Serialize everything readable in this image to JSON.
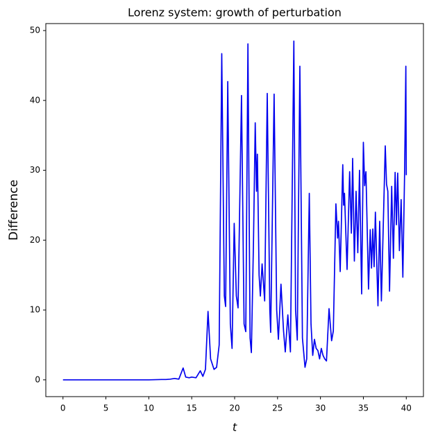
{
  "chart_data": {
    "type": "line",
    "title": "Lorenz system: growth of perturbation",
    "x_label": "t",
    "y_label": "Difference",
    "x": [
      0,
      5,
      10,
      11.5,
      12,
      12.5,
      13,
      13.5,
      14,
      14.3,
      14.7,
      15,
      15.5,
      16,
      16.3,
      16.6,
      16.9,
      17.2,
      17.6,
      17.9,
      18.2,
      18.5,
      18.8,
      18.95,
      19.2,
      19.5,
      19.7,
      19.95,
      20.2,
      20.4,
      20.8,
      21.1,
      21.3,
      21.55,
      21.8,
      21.95,
      22.2,
      22.4,
      22.55,
      22.65,
      22.85,
      23.0,
      23.2,
      23.5,
      23.8,
      24.1,
      24.2,
      24.6,
      24.9,
      25.1,
      25.4,
      25.7,
      25.9,
      26.2,
      26.5,
      26.9,
      27.1,
      27.3,
      27.6,
      27.9,
      28.2,
      28.4,
      28.7,
      28.9,
      29.1,
      29.3,
      29.5,
      29.7,
      29.9,
      30.1,
      30.3,
      30.5,
      30.7,
      31,
      31.3,
      31.5,
      31.8,
      32,
      32.1,
      32.3,
      32.6,
      32.7,
      32.8,
      33.1,
      33.4,
      33.6,
      33.75,
      33.95,
      34.15,
      34.35,
      34.55,
      34.8,
      35.0,
      35.15,
      35.3,
      35.6,
      35.8,
      35.95,
      36.1,
      36.25,
      36.4,
      36.7,
      36.9,
      37.1,
      37.55,
      37.7,
      37.85,
      38.05,
      38.3,
      38.5,
      38.7,
      38.85,
      39.0,
      39.2,
      39.4,
      39.6,
      39.8,
      39.95,
      40
    ],
    "series": [
      {
        "name": "Difference",
        "color": "#0000ee",
        "values": [
          0,
          0,
          0,
          0.05,
          0.05,
          0.1,
          0.2,
          0.1,
          1.7,
          0.4,
          0.3,
          0.4,
          0.3,
          1.3,
          0.5,
          1.5,
          9.8,
          3,
          1.5,
          1.8,
          5,
          46.7,
          12,
          10.5,
          42.7,
          8,
          4.5,
          22.4,
          12,
          10.3,
          40.7,
          8,
          6.9,
          48.1,
          6,
          3.9,
          20,
          36.8,
          27,
          32.3,
          15,
          12,
          16.6,
          11.3,
          41,
          10,
          6.8,
          40.9,
          10,
          5.8,
          13.7,
          7,
          4,
          9.3,
          4,
          48.5,
          10,
          5.7,
          44.9,
          6,
          1.8,
          3,
          26.7,
          8,
          3.5,
          5.8,
          4.5,
          4.2,
          3,
          4.5,
          3.5,
          3,
          2.7,
          10.2,
          5.6,
          7,
          25.2,
          20.3,
          22.7,
          15.5,
          30.8,
          25,
          26.7,
          15.8,
          29.8,
          21,
          31.7,
          17,
          27,
          18.2,
          30,
          12.3,
          34,
          27.8,
          29.8,
          13,
          21.5,
          16,
          21.6,
          16.2,
          24,
          10.6,
          22.7,
          11.3,
          33.5,
          28,
          27,
          12.7,
          27.7,
          17.4,
          29.7,
          22.2,
          29.6,
          18.5,
          25.8,
          14.7,
          29.3,
          44.9,
          29.3
        ]
      }
    ],
    "xlim": [
      -2,
      42
    ],
    "ylim": [
      -2.4,
      51
    ],
    "xticks": [
      0,
      5,
      10,
      15,
      20,
      25,
      30,
      35,
      40
    ],
    "yticks": [
      0,
      10,
      20,
      30,
      40,
      50
    ],
    "grid": false
  }
}
